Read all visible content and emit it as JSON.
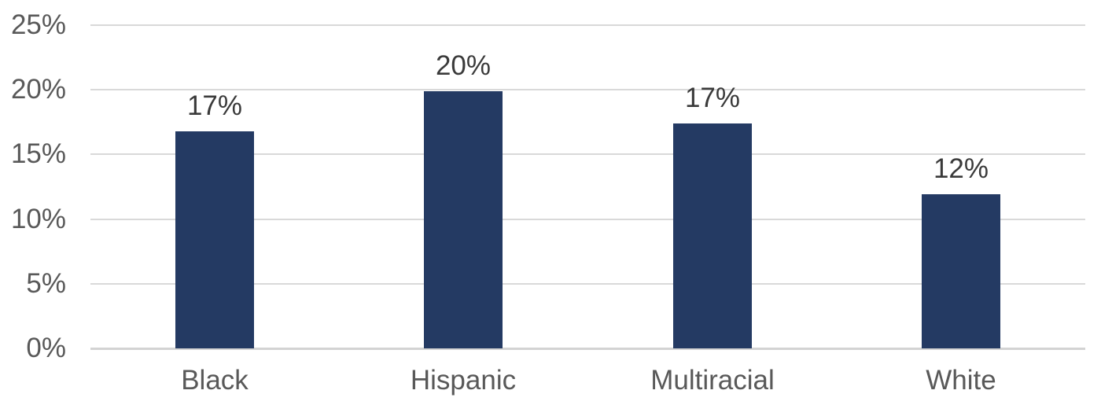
{
  "chart_data": {
    "type": "bar",
    "title": "",
    "xlabel": "",
    "ylabel": "",
    "categories": [
      "Black",
      "Hispanic",
      "Multiracial",
      "White"
    ],
    "values": [
      17,
      20,
      17,
      12
    ],
    "plotted_values": [
      16.8,
      19.9,
      17.4,
      11.9
    ],
    "data_labels": [
      "17%",
      "20%",
      "17%",
      "12%"
    ],
    "ylim": [
      0,
      25
    ],
    "ytick_step": 5,
    "ytick_labels": [
      "0%",
      "5%",
      "10%",
      "15%",
      "20%",
      "25%"
    ],
    "grid": true,
    "legend": "none",
    "colors": {
      "bar": "#243A63",
      "gridline": "#D9D9D9",
      "axis_line": "#D3D3D3",
      "tick_label": "#595959",
      "category_label": "#595959",
      "data_label": "#3A3A3A",
      "background": "#FFFFFF"
    }
  }
}
